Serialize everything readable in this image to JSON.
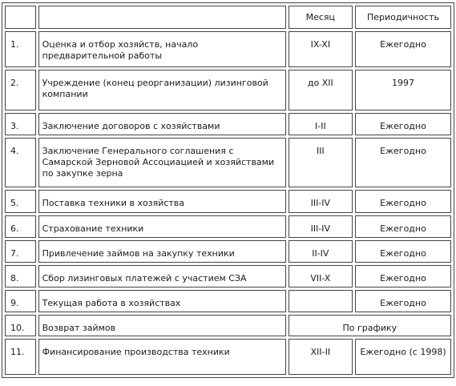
{
  "header": {
    "col_month": "Месяц",
    "col_period": "Периодичность"
  },
  "rows": [
    {
      "num": "1.",
      "text": "Оценка и отбор хозяйств, начало предварительной работы",
      "month": "IX-XI",
      "period": "Ежегодно"
    },
    {
      "num": "2.",
      "text": "Учреждение (конец реорганизации) лизинговой компании",
      "month": "до XII",
      "period": "1997"
    },
    {
      "num": "3.",
      "text": "Заключение договоров с хозяйствами",
      "month": "I-II",
      "period": "Ежегодно"
    },
    {
      "num": "4.",
      "text": "Заключение Генерального соглашения с Самарской Зерновой Ассоциацией и хозяйствами по закупке зерна",
      "month": "III",
      "period": "Ежегодно"
    },
    {
      "num": "5.",
      "text": "Поставка техники в хозяйства",
      "month": "III-IV",
      "period": "Ежегодно"
    },
    {
      "num": "6.",
      "text": "Страхование техники",
      "month": "III-IV",
      "period": "Ежегодно"
    },
    {
      "num": "7.",
      "text": "Привлечение займов на закупку техники",
      "month": "II-IV",
      "period": "Ежегодно"
    },
    {
      "num": "8.",
      "text": "Сбор лизинговых платежей с участием СЗА",
      "month": "VII-X",
      "period": "Ежегодно"
    },
    {
      "num": "9.",
      "text": "Текущая работа в хозяйствах",
      "month": "",
      "period": "Ежегодно"
    },
    {
      "num": "10.",
      "text": "Возврат займов",
      "merged": "По графику"
    },
    {
      "num": "11.",
      "text": "Финансирование производства техники",
      "month": "XII-II",
      "period": "Ежегодно (с 1998)"
    }
  ]
}
